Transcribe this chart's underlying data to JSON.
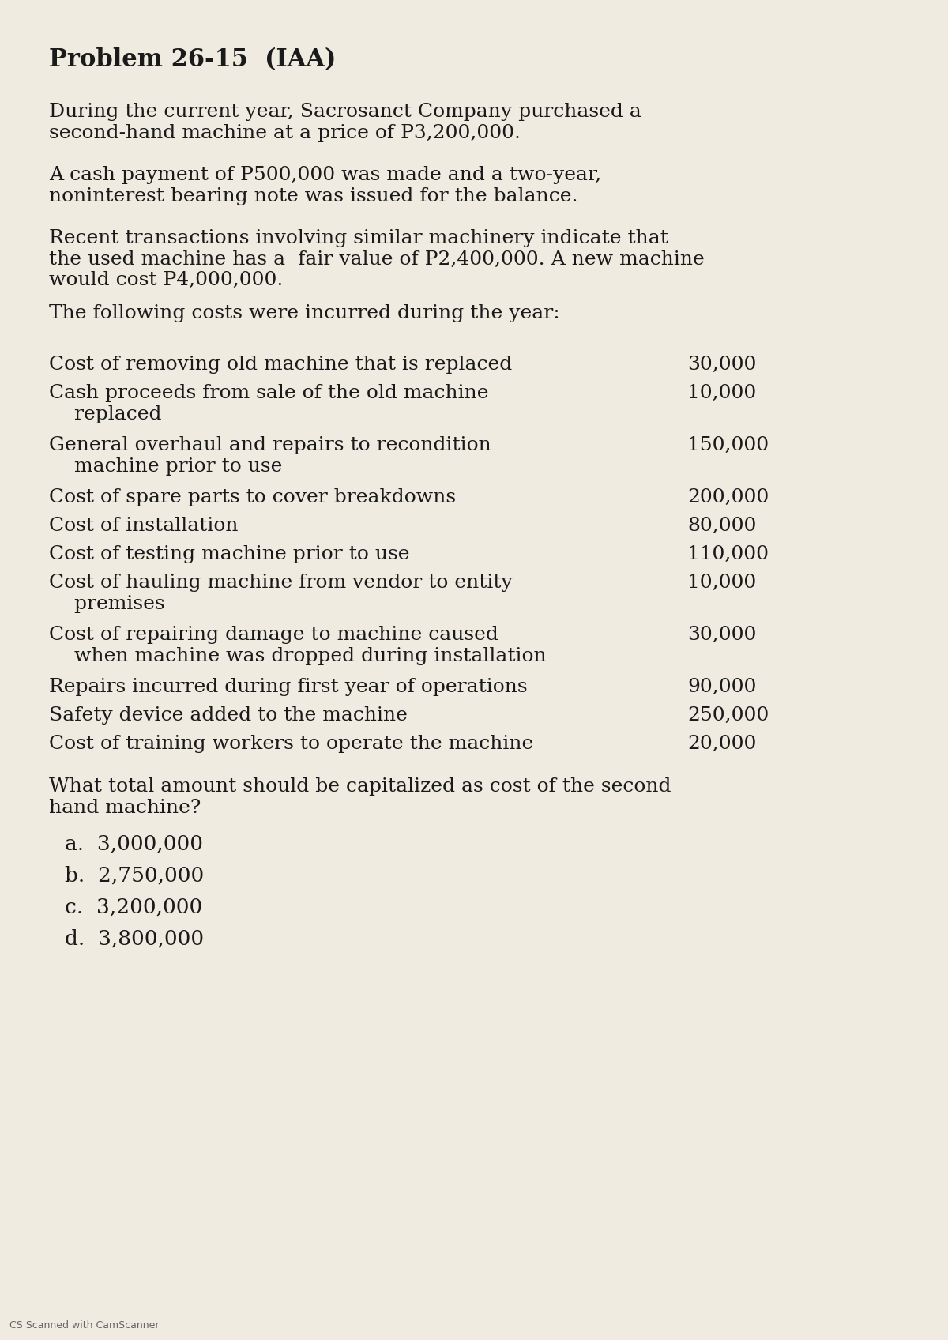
{
  "title": "Problem 26-15  (IAA)",
  "bg_color": "#f0ebe0",
  "text_color": "#1a1a1a",
  "para1": "During the current year, Sacrosanct Company purchased a\nsecond-hand machine at a price of P3,200,000.",
  "para2": "A cash payment of P500,000 was made and a two-year,\nnoninterest bearing note was issued for the balance.",
  "para3": "Recent transactions involving similar machinery indicate that\nthe used machine has a  fair value of P2,400,000. A new machine\nwould cost P4,000,000.",
  "para4": "The following costs were incurred during the year:",
  "cost_items": [
    {
      "label": "Cost of removing old machine that is replaced",
      "value": "30,000",
      "nlines": 1
    },
    {
      "label": "Cash proceeds from sale of the old machine\n    replaced",
      "value": "10,000",
      "nlines": 2
    },
    {
      "label": "General overhaul and repairs to recondition\n    machine prior to use",
      "value": "150,000",
      "nlines": 2
    },
    {
      "label": "Cost of spare parts to cover breakdowns",
      "value": "200,000",
      "nlines": 1
    },
    {
      "label": "Cost of installation",
      "value": "80,000",
      "nlines": 1
    },
    {
      "label": "Cost of testing machine prior to use",
      "value": "110,000",
      "nlines": 1
    },
    {
      "label": "Cost of hauling machine from vendor to entity\n    premises",
      "value": "10,000",
      "nlines": 2
    },
    {
      "label": "Cost of repairing damage to machine caused\n    when machine was dropped during installation",
      "value": "30,000",
      "nlines": 2
    },
    {
      "label": "Repairs incurred during first year of operations",
      "value": "90,000",
      "nlines": 1
    },
    {
      "label": "Safety device added to the machine",
      "value": "250,000",
      "nlines": 1
    },
    {
      "label": "Cost of training workers to operate the machine",
      "value": "20,000",
      "nlines": 1
    }
  ],
  "question": "What total amount should be capitalized as cost of the second\nhand machine?",
  "choices": [
    "a.  3,000,000",
    "b.  2,750,000",
    "c.  3,200,000",
    "d.  3,800,000"
  ],
  "footer": "CS Scanned with CamScanner",
  "title_fontsize": 22,
  "body_fontsize": 18,
  "choice_fontsize": 19
}
